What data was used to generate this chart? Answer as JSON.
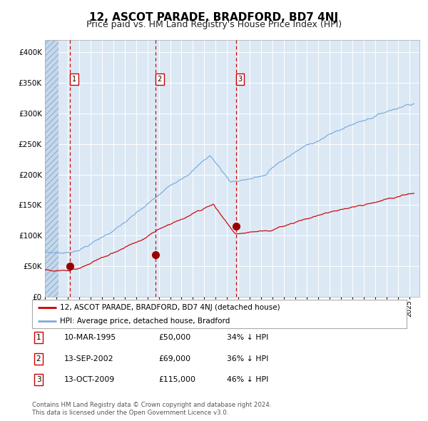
{
  "title": "12, ASCOT PARADE, BRADFORD, BD7 4NJ",
  "subtitle": "Price paid vs. HM Land Registry's House Price Index (HPI)",
  "title_fontsize": 11,
  "subtitle_fontsize": 9,
  "bg_color": "#dce9f5",
  "grid_color": "#ffffff",
  "sale_prices": [
    50000,
    69000,
    115000
  ],
  "sale_labels": [
    "1",
    "2",
    "3"
  ],
  "sale_date_strs": [
    "10-MAR-1995",
    "13-SEP-2002",
    "13-OCT-2009"
  ],
  "sale_years": [
    1995.19,
    2002.7,
    2009.78
  ],
  "sale_pct": [
    "34%",
    "36%",
    "46%"
  ],
  "legend_entry1": "12, ASCOT PARADE, BRADFORD, BD7 4NJ (detached house)",
  "legend_entry2": "HPI: Average price, detached house, Bradford",
  "footnote1": "Contains HM Land Registry data © Crown copyright and database right 2024.",
  "footnote2": "This data is licensed under the Open Government Licence v3.0.",
  "red_line_color": "#cc0000",
  "blue_line_color": "#7aaadd",
  "marker_color": "#990000",
  "dashed_color": "#cc0000",
  "box_color": "#cc0000",
  "ylim": [
    0,
    420000
  ],
  "yticks": [
    0,
    50000,
    100000,
    150000,
    200000,
    250000,
    300000,
    350000,
    400000
  ],
  "ytick_labels": [
    "£0",
    "£50K",
    "£100K",
    "£150K",
    "£200K",
    "£250K",
    "£300K",
    "£350K",
    "£400K"
  ],
  "xmin": 1993.0,
  "xmax": 2025.9
}
